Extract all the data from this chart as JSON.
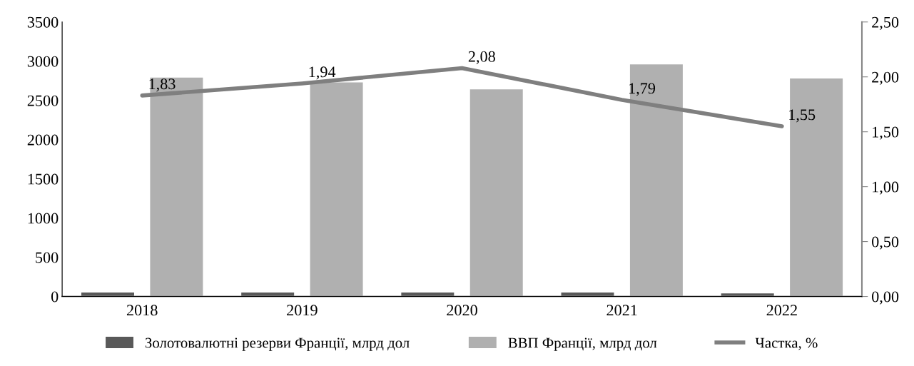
{
  "chart_data": {
    "type": "bar",
    "categories": [
      "2018",
      "2019",
      "2020",
      "2021",
      "2022"
    ],
    "series": [
      {
        "name": "Золотовалютні резерви Франції, млрд дол",
        "color": "#595959",
        "values": [
          50,
          50,
          50,
          50,
          40
        ]
      },
      {
        "name": "ВВП Франції, млрд дол",
        "color": "#b0b0b0",
        "values": [
          2790,
          2730,
          2640,
          2960,
          2780
        ]
      },
      {
        "name": "Частка, %",
        "type": "line",
        "axis": "y2",
        "color": "#7f7f7f",
        "values": [
          1.83,
          1.94,
          2.08,
          1.79,
          1.55
        ],
        "value_labels": [
          "1,83",
          "1,94",
          "2,08",
          "1,79",
          "1,55"
        ]
      }
    ],
    "ylim": [
      0,
      3500
    ],
    "yticks": [
      0,
      500,
      1000,
      1500,
      2000,
      2500,
      3000,
      3500
    ],
    "y2lim": [
      0,
      2.5
    ],
    "y2ticks": [
      {
        "value": 0,
        "label": "0,00"
      },
      {
        "value": 0.5,
        "label": "0,50"
      },
      {
        "value": 1,
        "label": "1,00"
      },
      {
        "value": 1.5,
        "label": "1,50"
      },
      {
        "value": 2,
        "label": "2,00"
      },
      {
        "value": 2.5,
        "label": "2,50"
      }
    ],
    "grid": false,
    "legend": "bottom",
    "marker": "none",
    "line_style": "solid"
  }
}
